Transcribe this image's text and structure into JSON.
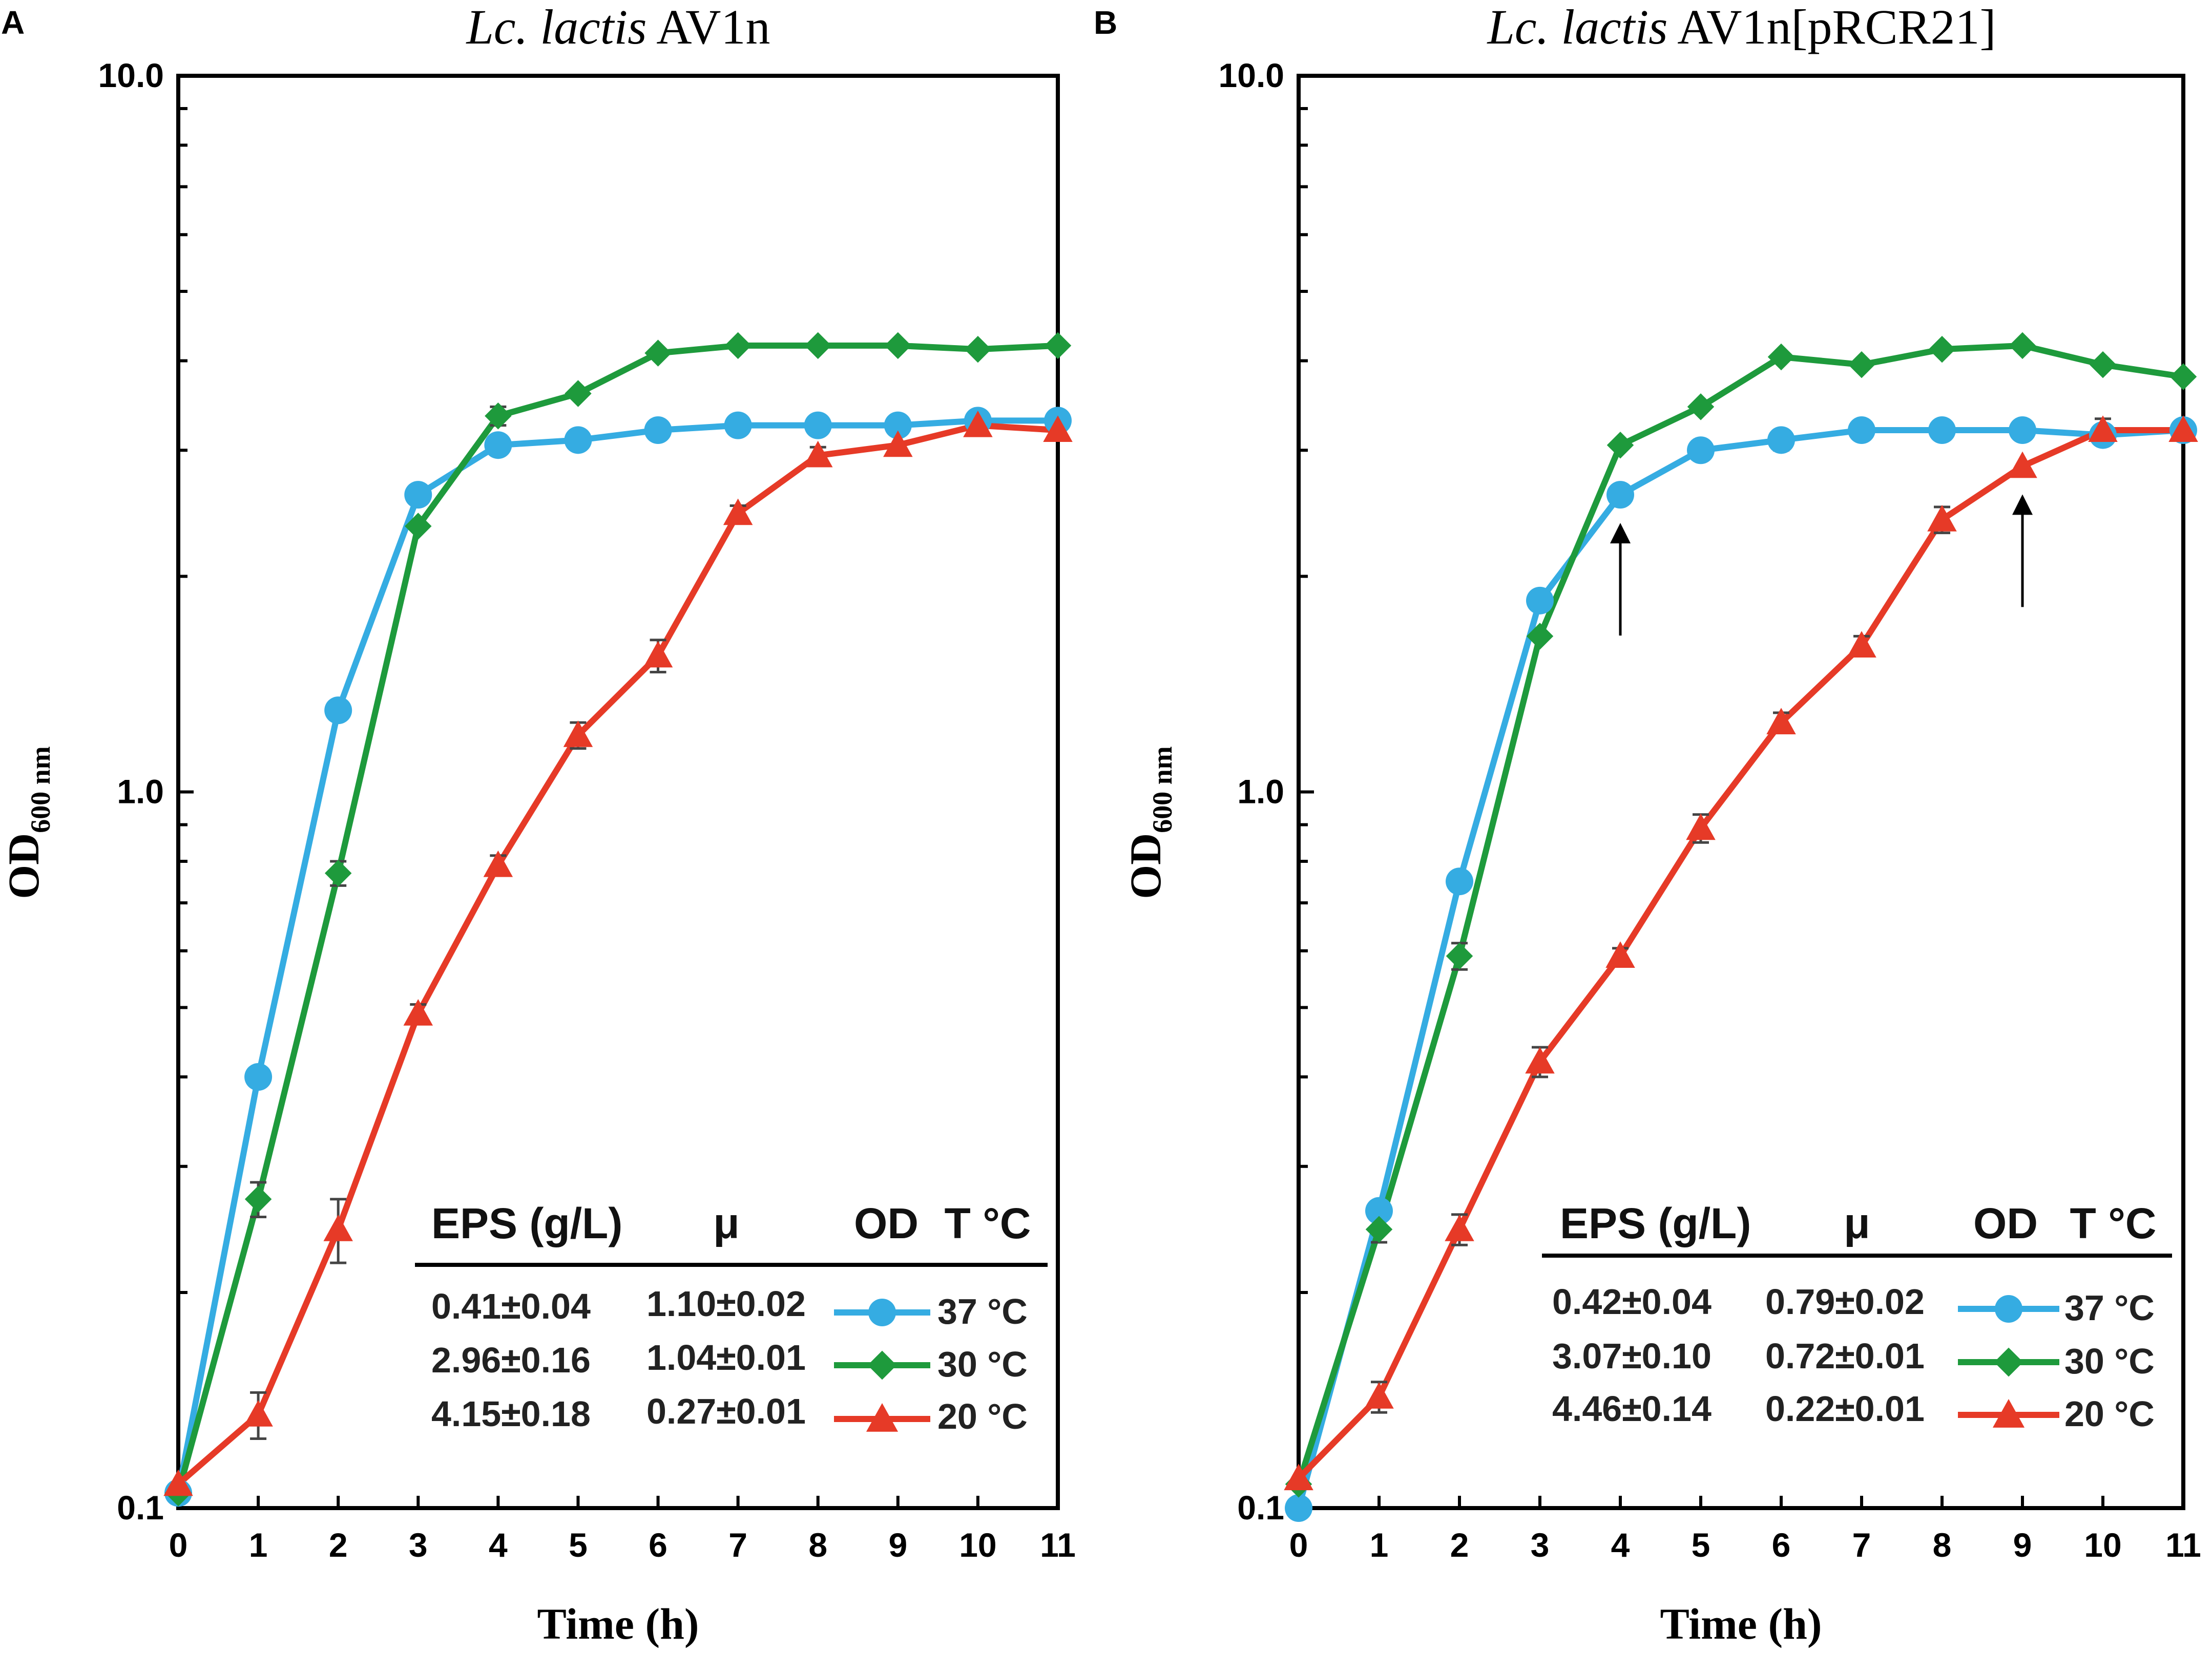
{
  "colors": {
    "c37": "#35ACE2",
    "c30": "#1E9A3C",
    "c20": "#E63A27",
    "axis": "#000000",
    "error": "#444444"
  },
  "chart_data": [
    {
      "panel": "A",
      "type": "line",
      "title_italic": "Lc. lactis",
      "title_rest": " AV1n",
      "xlabel": "Time (h)",
      "ylabel_main": "OD",
      "ylabel_sub": "600 nm",
      "yscale": "log",
      "ylim": [
        0.1,
        10.0
      ],
      "xlim": [
        0,
        11
      ],
      "x": [
        0,
        1,
        2,
        3,
        4,
        5,
        6,
        7,
        8,
        9,
        10,
        11
      ],
      "x_tick_labels": [
        "0",
        "1",
        "2",
        "3",
        "4",
        "5",
        "6",
        "7",
        "8",
        "9",
        "10",
        "11"
      ],
      "y_tick_labels": [
        "0.1",
        "1.0",
        "10.0"
      ],
      "series": [
        {
          "name": "37 °C",
          "marker": "circle",
          "color": "#35ACE2",
          "values": [
            0.105,
            0.4,
            1.3,
            2.6,
            3.05,
            3.1,
            3.2,
            3.25,
            3.25,
            3.25,
            3.3,
            3.3
          ],
          "errors": [
            0,
            0,
            0,
            0,
            0,
            0,
            0,
            0,
            0,
            0,
            0,
            0
          ]
        },
        {
          "name": "30 °C",
          "marker": "diamond",
          "color": "#1E9A3C",
          "values": [
            0.105,
            0.27,
            0.77,
            2.35,
            3.35,
            3.6,
            4.1,
            4.2,
            4.2,
            4.2,
            4.15,
            4.2
          ],
          "errors": [
            0,
            0.015,
            0.03,
            0,
            0.1,
            0,
            0,
            0,
            0,
            0,
            0,
            0
          ]
        },
        {
          "name": "20 °C",
          "marker": "triangle",
          "color": "#E63A27",
          "values": [
            0.108,
            0.135,
            0.245,
            0.49,
            0.79,
            1.2,
            1.55,
            2.45,
            2.95,
            3.05,
            3.25,
            3.2
          ],
          "errors": [
            0,
            0.01,
            0.025,
            0.015,
            0.025,
            0.05,
            0.08,
            0.06,
            0.08,
            0,
            0,
            0
          ]
        }
      ],
      "legend": {
        "headers": [
          "EPS (g/L)",
          "μ",
          "OD",
          "T °C"
        ],
        "rows": [
          {
            "eps": "0.41±0.04",
            "mu": "1.10±0.02",
            "temp": "37 °C"
          },
          {
            "eps": "2.96±0.16",
            "mu": "1.04±0.01",
            "temp": "30 °C"
          },
          {
            "eps": "4.15±0.18",
            "mu": "0.27±0.01",
            "temp": "20 °C"
          }
        ],
        "position": "bottom-right"
      },
      "arrows_at_x": []
    },
    {
      "panel": "B",
      "type": "line",
      "title_italic": "Lc. lactis",
      "title_rest": " AV1n[pRCR21]",
      "xlabel": "Time (h)",
      "ylabel_main": "OD",
      "ylabel_sub": "600 nm",
      "yscale": "log",
      "ylim": [
        0.1,
        10.0
      ],
      "xlim": [
        0,
        11
      ],
      "x": [
        0,
        1,
        2,
        3,
        4,
        5,
        6,
        7,
        8,
        9,
        10,
        11
      ],
      "x_tick_labels": [
        "0",
        "1",
        "2",
        "3",
        "4",
        "5",
        "6",
        "7",
        "8",
        "9",
        "10",
        "11"
      ],
      "y_tick_labels": [
        "0.1",
        "1.0",
        "10.0"
      ],
      "series": [
        {
          "name": "37 °C",
          "marker": "circle",
          "color": "#35ACE2",
          "values": [
            0.1,
            0.26,
            0.75,
            1.85,
            2.6,
            3.0,
            3.1,
            3.2,
            3.2,
            3.2,
            3.15,
            3.2
          ],
          "errors": [
            0,
            0,
            0,
            0,
            0,
            0,
            0.1,
            0,
            0,
            0,
            0,
            0
          ]
        },
        {
          "name": "30 °C",
          "marker": "diamond",
          "color": "#1E9A3C",
          "values": [
            0.108,
            0.245,
            0.59,
            1.65,
            3.05,
            3.45,
            4.05,
            3.95,
            4.15,
            4.2,
            3.95,
            3.8
          ],
          "errors": [
            0,
            0.01,
            0.025,
            0,
            0,
            0,
            0,
            0,
            0,
            0,
            0,
            0
          ]
        },
        {
          "name": "20 °C",
          "marker": "triangle",
          "color": "#E63A27",
          "values": [
            0.11,
            0.143,
            0.245,
            0.42,
            0.59,
            0.89,
            1.25,
            1.6,
            2.4,
            2.85,
            3.2,
            3.2
          ],
          "errors": [
            0,
            0.007,
            0.012,
            0.02,
            0.015,
            0.04,
            0.04,
            0.05,
            0.1,
            0,
            0.12,
            0
          ]
        }
      ],
      "legend": {
        "headers": [
          "EPS (g/L)",
          "μ",
          "OD",
          "T °C"
        ],
        "rows": [
          {
            "eps": "0.42±0.04",
            "mu": "0.79±0.02",
            "temp": "37 °C"
          },
          {
            "eps": "3.07±0.10",
            "mu": "0.72±0.01",
            "temp": "30 °C"
          },
          {
            "eps": "4.46±0.14",
            "mu": "0.22±0.01",
            "temp": "20 °C"
          }
        ],
        "position": "bottom-right"
      },
      "arrows_at_x": [
        4,
        9
      ]
    }
  ]
}
